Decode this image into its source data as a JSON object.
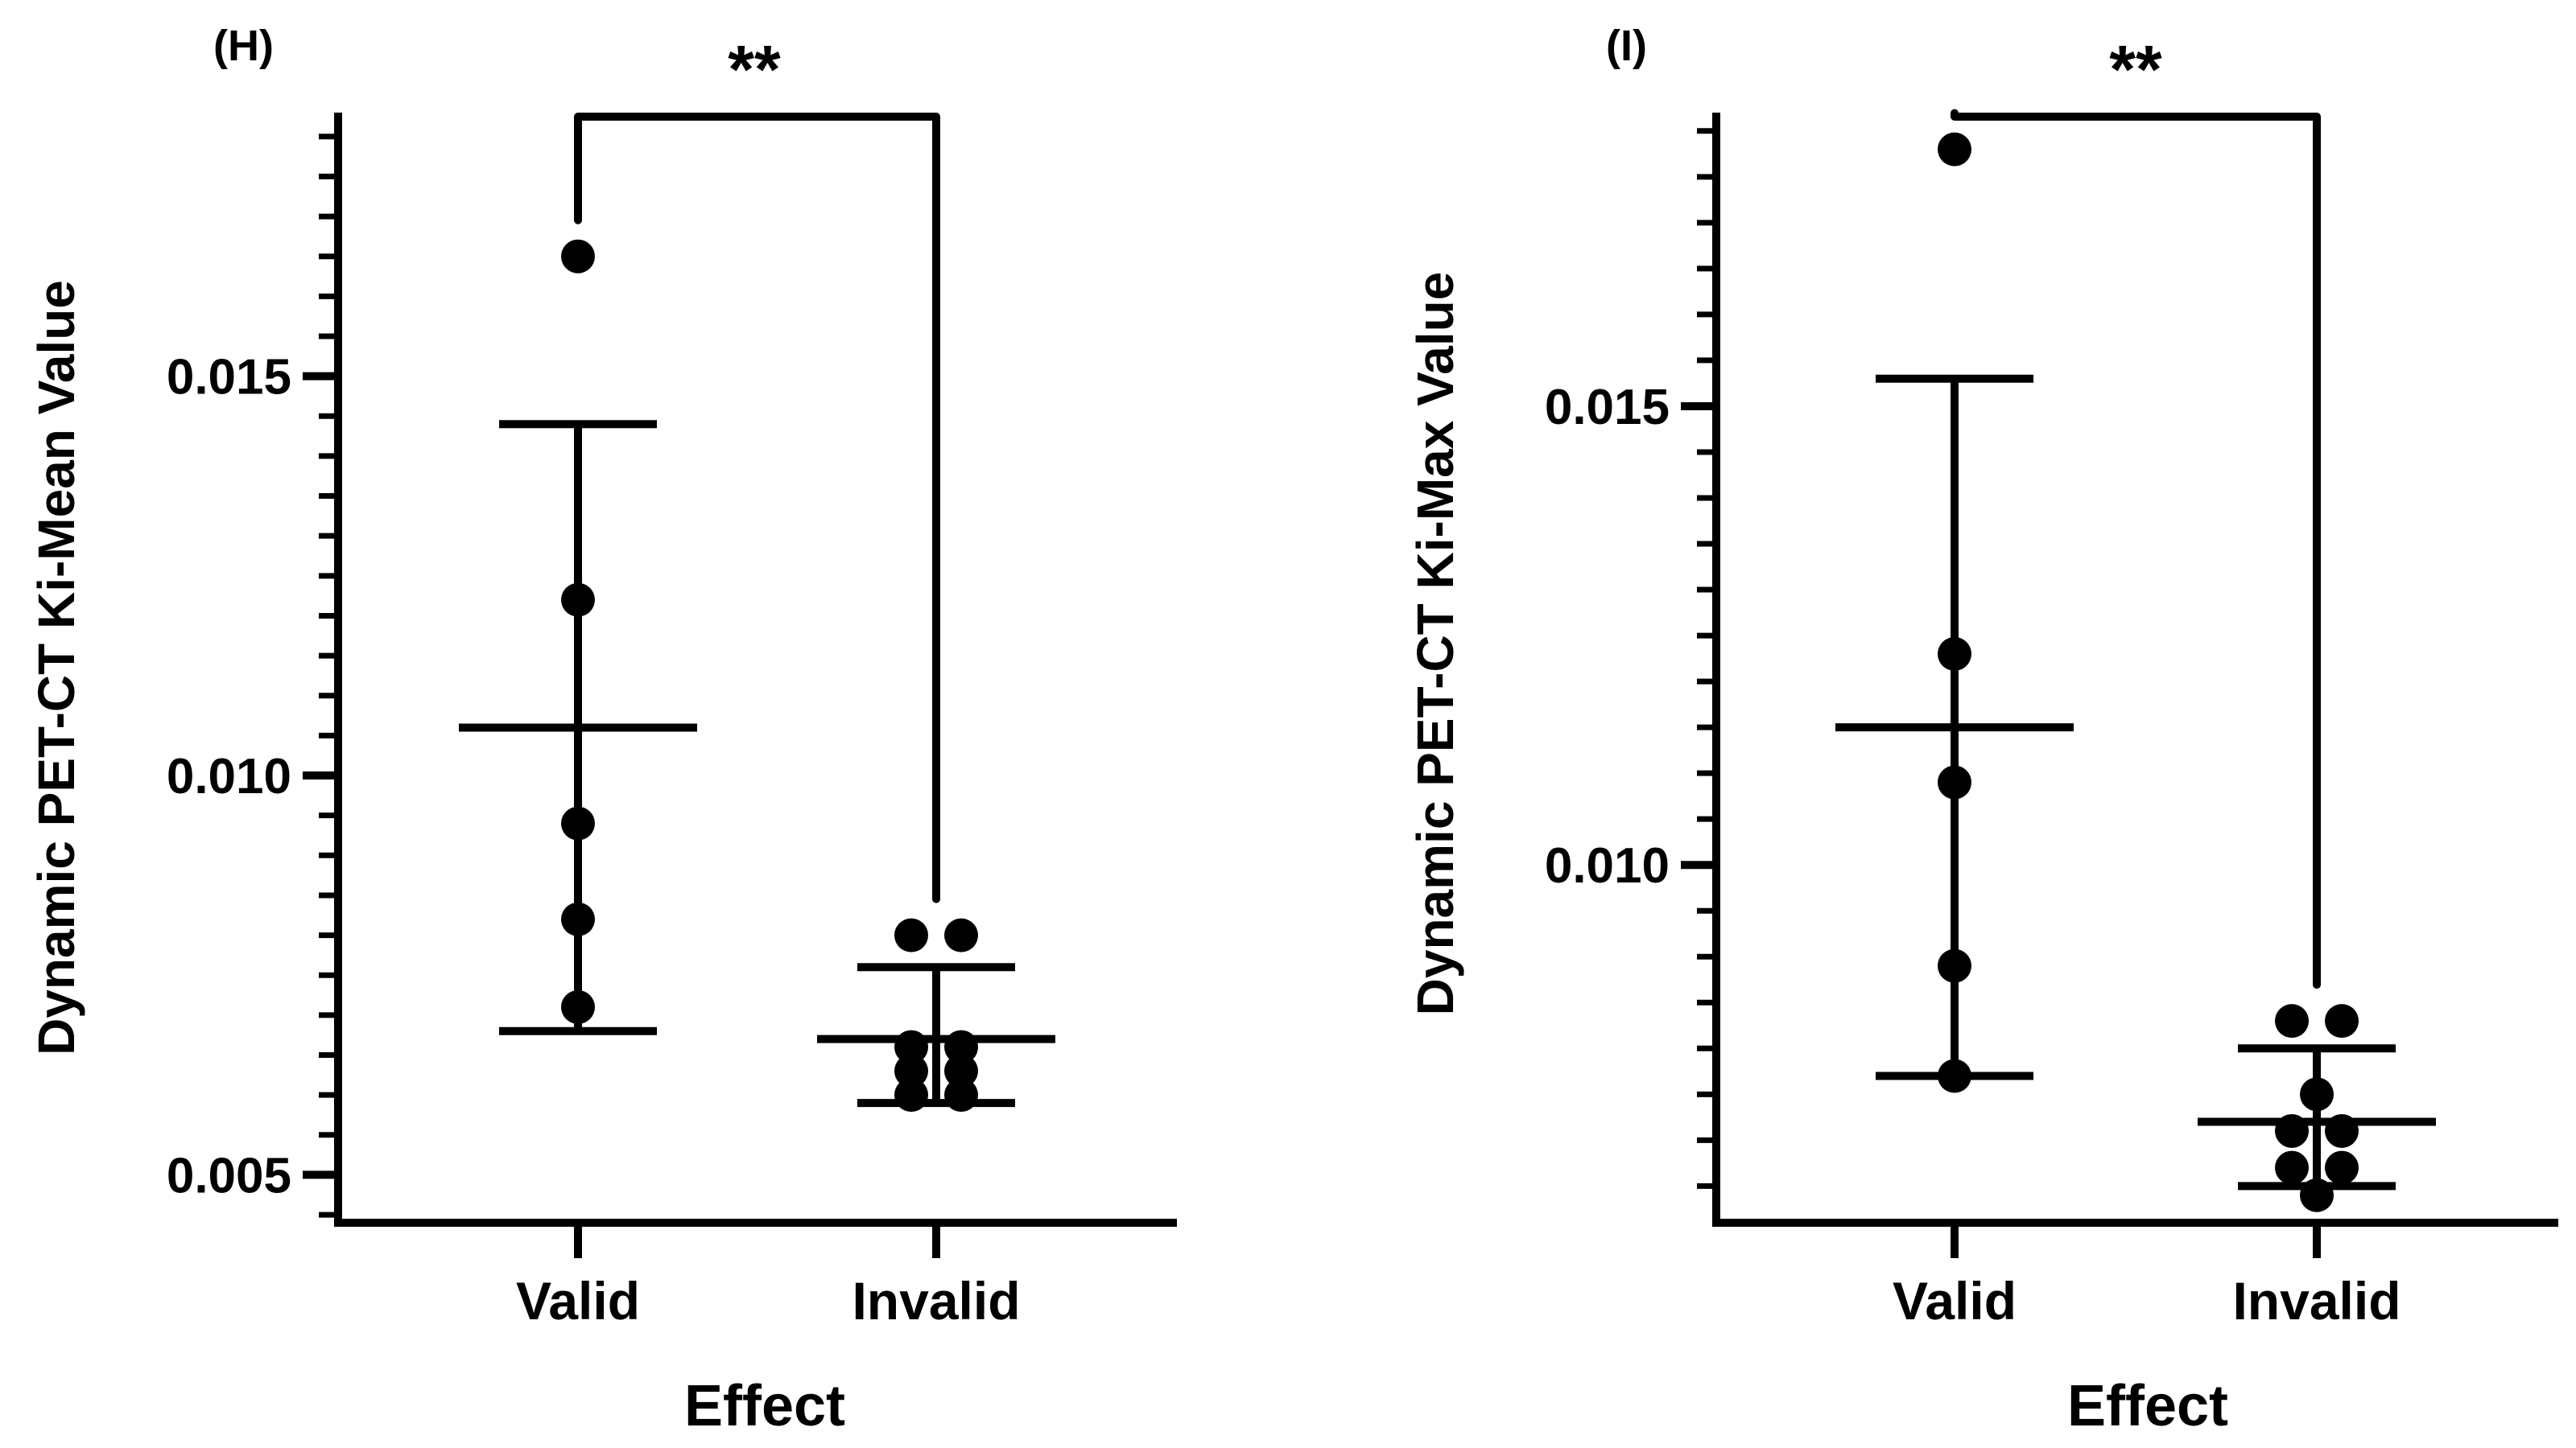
{
  "chart_data": [
    {
      "type": "scatter",
      "panel_label": "(H)",
      "title": "",
      "xlabel": "Effect",
      "ylabel": "Dynamic PET-CT Ki-Mean Value",
      "categories": [
        "Valid",
        "Invalid"
      ],
      "ylim": [
        0.0044,
        0.0183
      ],
      "yticks": [
        0.005,
        0.01,
        0.015
      ],
      "ytick_labels": [
        "0.005",
        "0.010",
        "0.015"
      ],
      "ytick_minor_step": 0.0005,
      "series": [
        {
          "name": "Valid",
          "points": [
            0.0165,
            0.0122,
            0.0094,
            0.0082,
            0.0071
          ],
          "mean": 0.0106,
          "sd_low": 0.0068,
          "sd_high": 0.0144
        },
        {
          "name": "Invalid",
          "points": [
            0.008,
            0.008,
            0.0066,
            0.0066,
            0.0063,
            0.0063,
            0.006,
            0.006
          ],
          "mean": 0.0067,
          "sd_low": 0.0059,
          "sd_high": 0.0076
        }
      ],
      "significance": {
        "label": "**",
        "between": [
          "Valid",
          "Invalid"
        ]
      }
    },
    {
      "type": "scatter",
      "panel_label": "(I)",
      "title": "",
      "xlabel": "Effect",
      "ylabel": "Dynamic PET-CT Ki-Max Value",
      "categories": [
        "Valid",
        "Invalid"
      ],
      "ylim": [
        0.0061,
        0.0182
      ],
      "yticks": [
        0.01,
        0.015
      ],
      "ytick_labels": [
        "0.010",
        "0.015"
      ],
      "ytick_minor_step": 0.0005,
      "series": [
        {
          "name": "Valid",
          "points": [
            0.0178,
            0.0123,
            0.0109,
            0.0089,
            0.0077
          ],
          "mean": 0.0115,
          "sd_low": 0.0077,
          "sd_high": 0.0153
        },
        {
          "name": "Invalid",
          "points": [
            0.0083,
            0.0083,
            0.0075,
            0.0071,
            0.0071,
            0.0067,
            0.0067,
            0.0064
          ],
          "mean": 0.0072,
          "sd_low": 0.0065,
          "sd_high": 0.008
        }
      ],
      "significance": {
        "label": "**",
        "between": [
          "Valid",
          "Invalid"
        ]
      }
    }
  ]
}
